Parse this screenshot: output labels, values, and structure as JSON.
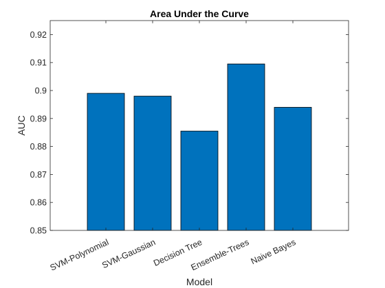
{
  "chart_data": {
    "type": "bar",
    "title": "Area Under the Curve",
    "xlabel": "Model",
    "ylabel": "AUC",
    "categories": [
      "SVM-Polynomial",
      "SVM-Gaussian",
      "Decision Tree",
      "Ensemble-Trees",
      "Naive Bayes"
    ],
    "values": [
      0.899,
      0.898,
      0.8855,
      0.9095,
      0.894
    ],
    "ylim": [
      0.85,
      0.925
    ],
    "yticks": [
      "0.85",
      "0.86",
      "0.87",
      "0.88",
      "0.89",
      "0.9",
      "0.91",
      "0.92"
    ],
    "grid": false,
    "bar_color": "#0072BD"
  }
}
